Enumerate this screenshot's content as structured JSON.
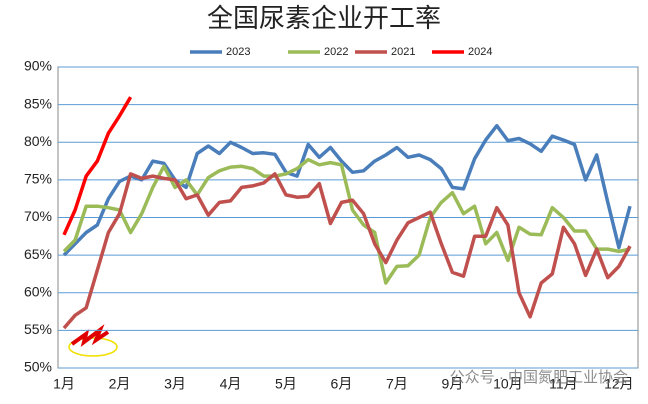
{
  "chart_data": {
    "type": "line",
    "title": "全国尿素企业开工率",
    "categories": [
      "1月",
      null,
      null,
      null,
      null,
      "2月",
      null,
      null,
      null,
      null,
      "3月",
      null,
      null,
      null,
      null,
      "4月",
      null,
      null,
      null,
      null,
      "5月",
      null,
      null,
      null,
      null,
      "6月",
      null,
      null,
      null,
      null,
      "7月",
      null,
      null,
      null,
      null,
      "9月",
      null,
      null,
      null,
      null,
      "10月",
      null,
      null,
      null,
      null,
      "11月",
      null,
      null,
      null,
      null,
      "12月",
      null
    ],
    "series": [
      {
        "name": "2023",
        "color": "#4a7ebb",
        "values": [
          65,
          66.5,
          68,
          69,
          72.5,
          74.8,
          75.5,
          75,
          77.5,
          77.2,
          75,
          74,
          78.5,
          79.5,
          78.5,
          80,
          79.3,
          78.5,
          78.6,
          78.4,
          76,
          75.5,
          79.7,
          78,
          79.3,
          77.5,
          76,
          76.2,
          77.5,
          78.3,
          79.3,
          78,
          78.3,
          77.7,
          76.5,
          74,
          73.8,
          77.8,
          80.3,
          82.2,
          80.2,
          80.5,
          79.8,
          78.8,
          80.8,
          80.3,
          79.7,
          75,
          78.3,
          72,
          66,
          71.5
        ]
      },
      {
        "name": "2022",
        "color": "#9bbb59",
        "values": [
          65.5,
          67,
          71.5,
          71.5,
          71.3,
          71,
          68,
          70.5,
          74,
          76.8,
          74,
          75,
          73,
          75.3,
          76.2,
          76.7,
          76.8,
          76.5,
          75.5,
          75.5,
          75.8,
          76.5,
          77.7,
          77,
          77.3,
          77,
          71,
          69,
          68,
          61.3,
          63.5,
          63.6,
          65,
          70,
          72,
          73.3,
          70.5,
          71.5,
          66.5,
          68,
          64.3,
          68.7,
          67.8,
          67.7,
          71.3,
          70,
          68.2,
          68.2,
          65.8,
          65.8,
          65.5,
          65.8
        ]
      },
      {
        "name": "2021",
        "color": "#c0504d",
        "values": [
          55.3,
          57,
          58,
          63,
          68,
          70.5,
          75.8,
          75.2,
          75.5,
          75.2,
          75,
          72.5,
          73,
          70.3,
          72,
          72.2,
          74,
          74.2,
          74.6,
          75.8,
          73,
          72.7,
          72.8,
          74.5,
          69.2,
          72,
          72.3,
          70.5,
          66.5,
          64,
          67,
          69.3,
          70,
          70.7,
          66.5,
          62.7,
          62.2,
          67.5,
          67.5,
          71.3,
          69,
          60,
          56.8,
          61.3,
          62.5,
          68.7,
          66.5,
          62.3,
          65.8,
          62,
          63.5,
          66.2
        ]
      },
      {
        "name": "2024",
        "color": "#ff0000",
        "values": [
          67.7,
          71,
          75.5,
          77.5,
          81.2,
          83.5,
          86,
          null,
          null,
          null,
          null,
          null,
          null,
          null,
          null,
          null,
          null,
          null,
          null,
          null,
          null,
          null,
          null,
          null,
          null,
          null,
          null,
          null,
          null,
          null,
          null,
          null,
          null,
          null,
          null,
          null,
          null,
          null,
          null,
          null,
          null,
          null,
          null,
          null,
          null,
          null,
          null,
          null,
          null,
          null,
          null,
          null
        ]
      }
    ],
    "ylim": [
      50,
      90
    ],
    "yticks": [
      {
        "value": 50,
        "label": "50%"
      },
      {
        "value": 55,
        "label": "55%"
      },
      {
        "value": 60,
        "label": "60%"
      },
      {
        "value": 65,
        "label": "65%"
      },
      {
        "value": 70,
        "label": "70%"
      },
      {
        "value": 75,
        "label": "75%"
      },
      {
        "value": 80,
        "label": "80%"
      },
      {
        "value": 85,
        "label": "85%"
      },
      {
        "value": 90,
        "label": "90%"
      }
    ],
    "grid": true,
    "legend": "top",
    "annotation": "公众号 · 中国氮肥工业协会"
  }
}
